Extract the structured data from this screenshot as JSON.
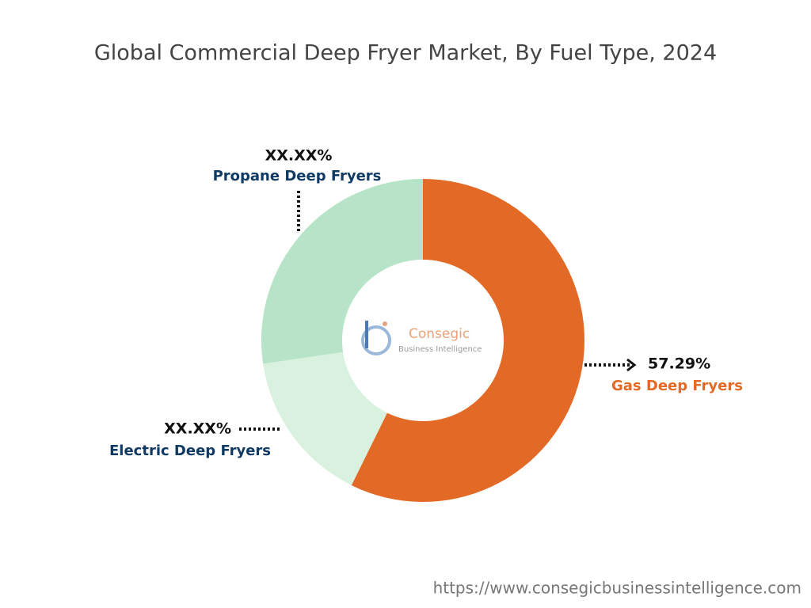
{
  "chart_data": {
    "type": "donut",
    "title": "Global Commercial Deep Fryer Market, By Fuel Type, 2024",
    "categories": [
      "Gas Deep Fryers",
      "Electric Deep Fryers",
      "Propane Deep Fryers"
    ],
    "values": [
      57.29,
      15.4,
      27.31
    ],
    "value_labels": [
      "57.29%",
      "XX.XX%",
      "XX.XX%"
    ],
    "colors": [
      "#e36a26",
      "#d9f2df",
      "#b7e4c8"
    ],
    "logo": {
      "name": "Consegic",
      "tagline": "Business Intelligence"
    },
    "source": "https://www.consegicbusinessintelligence.com"
  }
}
